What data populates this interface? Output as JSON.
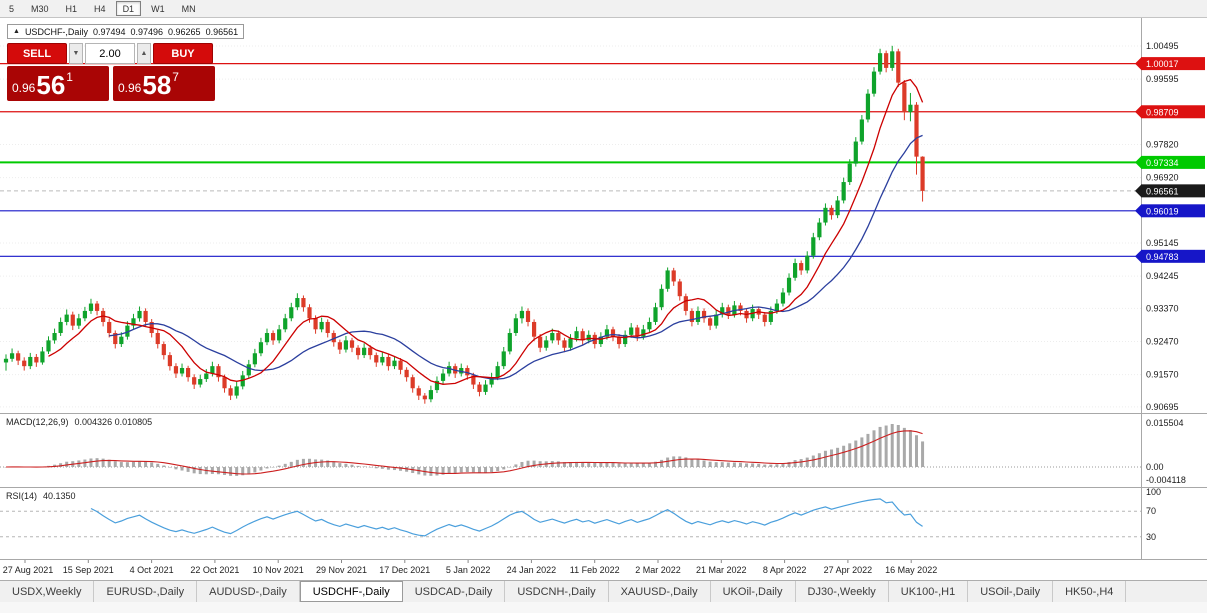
{
  "toolbar": {
    "timeframes": [
      {
        "label": "5",
        "active": false
      },
      {
        "label": "M30",
        "active": false
      },
      {
        "label": "H1",
        "active": false
      },
      {
        "label": "H4",
        "active": false
      },
      {
        "label": "D1",
        "active": true
      },
      {
        "label": "W1",
        "active": false
      },
      {
        "label": "MN",
        "active": false
      }
    ]
  },
  "trade_panel": {
    "sell_label": "SELL",
    "buy_label": "BUY",
    "volume": "2.00",
    "decrease_glyph": "▼",
    "increase_glyph": "▲",
    "bid": {
      "prefix": "0.96",
      "big": "56",
      "sup": "1"
    },
    "ask": {
      "prefix": "0.96",
      "big": "58",
      "sup": "7"
    }
  },
  "chart_data": {
    "type": "candlestick",
    "symbol": "USDCHF-",
    "timeframe": "Daily",
    "title": "USDCHF-,Daily",
    "ohlc": {
      "open": "0.97494",
      "high": "0.97496",
      "low": "0.96265",
      "close": "0.96561"
    },
    "price_axis_labels": [
      "1.00495",
      "0.99595",
      "0.97820",
      "0.96920",
      "0.95145",
      "0.94245",
      "0.93370",
      "0.92470",
      "0.91570",
      "0.90695"
    ],
    "levels": [
      {
        "price": 1.00017,
        "label": "1.00017",
        "color": "#dd1111",
        "width": 1.2
      },
      {
        "price": 0.98709,
        "label": "0.98709",
        "color": "#dd1111",
        "width": 1.2
      },
      {
        "price": 0.97334,
        "label": "0.97334",
        "color": "#00ca00",
        "width": 2
      },
      {
        "price": 0.96019,
        "label": "0.96019",
        "color": "#1616c8",
        "width": 1.2
      },
      {
        "price": 0.94783,
        "label": "0.94783",
        "color": "#1616c8",
        "width": 1.2
      }
    ],
    "current_price": {
      "value": 0.96561,
      "label": "0.96561",
      "color": "#1a1a1a"
    },
    "date_labels": [
      "27 Aug 2021",
      "15 Sep 2021",
      "4 Oct 2021",
      "22 Oct 2021",
      "10 Nov 2021",
      "29 Nov 2021",
      "17 Dec 2021",
      "5 Jan 2022",
      "24 Jan 2022",
      "11 Feb 2022",
      "2 Mar 2022",
      "21 Mar 2022",
      "8 Apr 2022",
      "27 Apr 2022",
      "16 May 2022"
    ],
    "indicators": {
      "macd": {
        "label": "MACD(12,26,9)",
        "values": "0.004326 0.010805",
        "params": [
          12,
          26,
          9
        ],
        "axis_labels": [
          "0.015504",
          "0.00",
          "-0.004118"
        ]
      },
      "rsi": {
        "label": "RSI(14)",
        "value": "40.1350",
        "period": 14,
        "levels": [
          70,
          30
        ],
        "axis_labels": [
          "100",
          "70",
          "30"
        ]
      }
    },
    "ma": {
      "fast_period": 8,
      "slow_period": 18
    },
    "colors": {
      "bull": "#0fa32b",
      "bear": "#dc3b28",
      "ma_fast": "#cc0000",
      "ma_slow": "#2b3f9e",
      "macd_hist": "#a9a9a9",
      "macd_signal": "#cc2020",
      "rsi": "#4a9fdc",
      "level_red": "#dd1111",
      "level_green": "#00ca00",
      "level_blue": "#1616c8",
      "current": "#1a1a1a"
    },
    "candles": [
      [
        0.919,
        0.9212,
        0.9168,
        0.92
      ],
      [
        0.92,
        0.9228,
        0.9192,
        0.9215
      ],
      [
        0.9215,
        0.9222,
        0.9183,
        0.9195
      ],
      [
        0.9195,
        0.9204,
        0.9168,
        0.918
      ],
      [
        0.918,
        0.9216,
        0.9172,
        0.9205
      ],
      [
        0.9205,
        0.9213,
        0.9178,
        0.919
      ],
      [
        0.919,
        0.9232,
        0.9184,
        0.922
      ],
      [
        0.922,
        0.9261,
        0.9213,
        0.925
      ],
      [
        0.925,
        0.9282,
        0.9241,
        0.927
      ],
      [
        0.927,
        0.9312,
        0.9262,
        0.93
      ],
      [
        0.93,
        0.9334,
        0.9291,
        0.932
      ],
      [
        0.932,
        0.9328,
        0.9278,
        0.929
      ],
      [
        0.929,
        0.9322,
        0.9281,
        0.931
      ],
      [
        0.931,
        0.9341,
        0.9302,
        0.933
      ],
      [
        0.933,
        0.9363,
        0.9322,
        0.935
      ],
      [
        0.935,
        0.9357,
        0.9318,
        0.933
      ],
      [
        0.933,
        0.9338,
        0.9288,
        0.93
      ],
      [
        0.93,
        0.9309,
        0.9258,
        0.927
      ],
      [
        0.927,
        0.9277,
        0.9228,
        0.924
      ],
      [
        0.924,
        0.9272,
        0.9232,
        0.926
      ],
      [
        0.926,
        0.9302,
        0.9252,
        0.929
      ],
      [
        0.929,
        0.9322,
        0.9281,
        0.931
      ],
      [
        0.931,
        0.9342,
        0.9301,
        0.933
      ],
      [
        0.933,
        0.9337,
        0.9288,
        0.93
      ],
      [
        0.93,
        0.9308,
        0.9258,
        0.927
      ],
      [
        0.927,
        0.9278,
        0.9228,
        0.924
      ],
      [
        0.924,
        0.9247,
        0.9198,
        0.921
      ],
      [
        0.921,
        0.9218,
        0.9168,
        0.918
      ],
      [
        0.918,
        0.9188,
        0.9148,
        0.916
      ],
      [
        0.916,
        0.9187,
        0.9152,
        0.9175
      ],
      [
        0.9175,
        0.9181,
        0.9138,
        0.915
      ],
      [
        0.915,
        0.9158,
        0.9118,
        0.913
      ],
      [
        0.913,
        0.9157,
        0.9122,
        0.9145
      ],
      [
        0.9145,
        0.9172,
        0.9137,
        0.916
      ],
      [
        0.916,
        0.9192,
        0.9152,
        0.918
      ],
      [
        0.918,
        0.9186,
        0.9138,
        0.915
      ],
      [
        0.915,
        0.9157,
        0.9108,
        0.912
      ],
      [
        0.912,
        0.9128,
        0.9088,
        0.91
      ],
      [
        0.91,
        0.9137,
        0.9092,
        0.9125
      ],
      [
        0.9125,
        0.9167,
        0.9117,
        0.9155
      ],
      [
        0.9155,
        0.9197,
        0.9147,
        0.9185
      ],
      [
        0.9185,
        0.9227,
        0.9177,
        0.9215
      ],
      [
        0.9215,
        0.9257,
        0.9207,
        0.9245
      ],
      [
        0.9245,
        0.9282,
        0.9237,
        0.927
      ],
      [
        0.927,
        0.9277,
        0.9238,
        0.925
      ],
      [
        0.925,
        0.9292,
        0.9242,
        0.928
      ],
      [
        0.928,
        0.9322,
        0.9272,
        0.931
      ],
      [
        0.931,
        0.9352,
        0.9302,
        0.934
      ],
      [
        0.934,
        0.9378,
        0.9332,
        0.9365
      ],
      [
        0.9365,
        0.9372,
        0.9328,
        0.934
      ],
      [
        0.934,
        0.9348,
        0.9298,
        0.931
      ],
      [
        0.931,
        0.9318,
        0.9268,
        0.928
      ],
      [
        0.928,
        0.9312,
        0.9272,
        0.93
      ],
      [
        0.93,
        0.9307,
        0.9258,
        0.927
      ],
      [
        0.927,
        0.9277,
        0.9233,
        0.9245
      ],
      [
        0.9245,
        0.9252,
        0.9213,
        0.9225
      ],
      [
        0.9225,
        0.9262,
        0.9217,
        0.925
      ],
      [
        0.925,
        0.9257,
        0.9218,
        0.923
      ],
      [
        0.923,
        0.9237,
        0.9198,
        0.921
      ],
      [
        0.921,
        0.9242,
        0.9202,
        0.923
      ],
      [
        0.923,
        0.9237,
        0.9198,
        0.921
      ],
      [
        0.921,
        0.9217,
        0.9178,
        0.919
      ],
      [
        0.919,
        0.9217,
        0.9182,
        0.9205
      ],
      [
        0.9205,
        0.9212,
        0.9168,
        0.918
      ],
      [
        0.918,
        0.9207,
        0.9172,
        0.9195
      ],
      [
        0.9195,
        0.9202,
        0.9158,
        0.917
      ],
      [
        0.917,
        0.9177,
        0.9138,
        0.915
      ],
      [
        0.915,
        0.9157,
        0.9108,
        0.912
      ],
      [
        0.912,
        0.9127,
        0.9088,
        0.91
      ],
      [
        0.91,
        0.9107,
        0.9078,
        0.909
      ],
      [
        0.909,
        0.9127,
        0.9082,
        0.9115
      ],
      [
        0.9115,
        0.9152,
        0.9107,
        0.914
      ],
      [
        0.914,
        0.9172,
        0.9132,
        0.916
      ],
      [
        0.916,
        0.9192,
        0.9152,
        0.918
      ],
      [
        0.918,
        0.9187,
        0.9148,
        0.916
      ],
      [
        0.916,
        0.9187,
        0.9152,
        0.9175
      ],
      [
        0.9175,
        0.9182,
        0.9143,
        0.9155
      ],
      [
        0.9155,
        0.9162,
        0.9118,
        0.913
      ],
      [
        0.913,
        0.9137,
        0.9098,
        0.911
      ],
      [
        0.911,
        0.9142,
        0.9102,
        0.913
      ],
      [
        0.913,
        0.9162,
        0.9122,
        0.915
      ],
      [
        0.915,
        0.9192,
        0.9142,
        0.918
      ],
      [
        0.918,
        0.9232,
        0.9172,
        0.922
      ],
      [
        0.922,
        0.9282,
        0.9212,
        0.927
      ],
      [
        0.927,
        0.9322,
        0.9262,
        0.931
      ],
      [
        0.931,
        0.9342,
        0.9296,
        0.933
      ],
      [
        0.933,
        0.9337,
        0.9288,
        0.93
      ],
      [
        0.93,
        0.9307,
        0.9248,
        0.926
      ],
      [
        0.926,
        0.9267,
        0.9218,
        0.923
      ],
      [
        0.923,
        0.9262,
        0.9222,
        0.925
      ],
      [
        0.925,
        0.9282,
        0.9242,
        0.927
      ],
      [
        0.927,
        0.9277,
        0.9238,
        0.925
      ],
      [
        0.925,
        0.9257,
        0.9218,
        0.923
      ],
      [
        0.923,
        0.9267,
        0.9222,
        0.9255
      ],
      [
        0.9255,
        0.9287,
        0.9247,
        0.9275
      ],
      [
        0.9275,
        0.9282,
        0.9238,
        0.925
      ],
      [
        0.925,
        0.9277,
        0.9242,
        0.9265
      ],
      [
        0.9265,
        0.9272,
        0.9228,
        0.924
      ],
      [
        0.924,
        0.9272,
        0.9232,
        0.926
      ],
      [
        0.926,
        0.9292,
        0.9252,
        0.928
      ],
      [
        0.928,
        0.9287,
        0.9248,
        0.926
      ],
      [
        0.926,
        0.9267,
        0.9228,
        0.924
      ],
      [
        0.924,
        0.9277,
        0.9232,
        0.9265
      ],
      [
        0.9265,
        0.9297,
        0.9257,
        0.9285
      ],
      [
        0.9285,
        0.9292,
        0.9248,
        0.926
      ],
      [
        0.926,
        0.9292,
        0.9252,
        0.928
      ],
      [
        0.928,
        0.9312,
        0.9272,
        0.93
      ],
      [
        0.93,
        0.9352,
        0.9292,
        0.934
      ],
      [
        0.934,
        0.9402,
        0.9332,
        0.939
      ],
      [
        0.939,
        0.9448,
        0.9382,
        0.944
      ],
      [
        0.944,
        0.9447,
        0.9398,
        0.941
      ],
      [
        0.941,
        0.9417,
        0.9358,
        0.937
      ],
      [
        0.937,
        0.9377,
        0.9318,
        0.933
      ],
      [
        0.933,
        0.9337,
        0.9288,
        0.93
      ],
      [
        0.93,
        0.9342,
        0.9292,
        0.933
      ],
      [
        0.933,
        0.9337,
        0.9298,
        0.931
      ],
      [
        0.931,
        0.9317,
        0.9278,
        0.929
      ],
      [
        0.929,
        0.9332,
        0.9282,
        0.932
      ],
      [
        0.932,
        0.9352,
        0.9312,
        0.934
      ],
      [
        0.934,
        0.9347,
        0.9308,
        0.932
      ],
      [
        0.932,
        0.9357,
        0.9312,
        0.9345
      ],
      [
        0.9345,
        0.9352,
        0.9318,
        0.933
      ],
      [
        0.933,
        0.9337,
        0.9298,
        0.931
      ],
      [
        0.931,
        0.9347,
        0.9302,
        0.9335
      ],
      [
        0.9335,
        0.9342,
        0.9308,
        0.932
      ],
      [
        0.932,
        0.9327,
        0.9288,
        0.93
      ],
      [
        0.93,
        0.9342,
        0.9292,
        0.933
      ],
      [
        0.933,
        0.9362,
        0.9322,
        0.935
      ],
      [
        0.935,
        0.9392,
        0.9342,
        0.938
      ],
      [
        0.938,
        0.9432,
        0.9372,
        0.942
      ],
      [
        0.942,
        0.9472,
        0.9412,
        0.946
      ],
      [
        0.946,
        0.9467,
        0.9428,
        0.944
      ],
      [
        0.944,
        0.9492,
        0.9432,
        0.948
      ],
      [
        0.948,
        0.9542,
        0.9472,
        0.953
      ],
      [
        0.953,
        0.9582,
        0.9522,
        0.957
      ],
      [
        0.957,
        0.9622,
        0.9562,
        0.961
      ],
      [
        0.961,
        0.9617,
        0.9578,
        0.959
      ],
      [
        0.959,
        0.9642,
        0.9582,
        0.963
      ],
      [
        0.963,
        0.9692,
        0.9622,
        0.968
      ],
      [
        0.968,
        0.9742,
        0.9672,
        0.973
      ],
      [
        0.973,
        0.9802,
        0.9722,
        0.979
      ],
      [
        0.979,
        0.9862,
        0.9782,
        0.985
      ],
      [
        0.985,
        0.9932,
        0.9842,
        0.992
      ],
      [
        0.992,
        0.9992,
        0.9912,
        0.998
      ],
      [
        0.998,
        1.0042,
        0.9972,
        1.003
      ],
      [
        1.003,
        1.0037,
        0.9978,
        0.999
      ],
      [
        0.999,
        1.005,
        0.9982,
        1.0035
      ],
      [
        1.0035,
        1.0042,
        0.9938,
        0.995
      ],
      [
        0.995,
        0.9957,
        0.9848,
        0.987
      ],
      [
        0.987,
        0.9922,
        0.9845,
        0.989
      ],
      [
        0.989,
        0.9897,
        0.97,
        0.9749
      ],
      [
        0.9749,
        0.975,
        0.9627,
        0.9656
      ]
    ]
  },
  "tabs": [
    {
      "label": "USDX,Weekly",
      "active": false
    },
    {
      "label": "EURUSD-,Daily",
      "active": false
    },
    {
      "label": "AUDUSD-,Daily",
      "active": false
    },
    {
      "label": "USDCHF-,Daily",
      "active": true
    },
    {
      "label": "USDCAD-,Daily",
      "active": false
    },
    {
      "label": "USDCNH-,Daily",
      "active": false
    },
    {
      "label": "XAUUSD-,Daily",
      "active": false
    },
    {
      "label": "UKOil-,Daily",
      "active": false
    },
    {
      "label": "DJ30-,Weekly",
      "active": false
    },
    {
      "label": "UK100-,H1",
      "active": false
    },
    {
      "label": "USOil-,Daily",
      "active": false
    },
    {
      "label": "HK50-,H4",
      "active": false
    }
  ]
}
